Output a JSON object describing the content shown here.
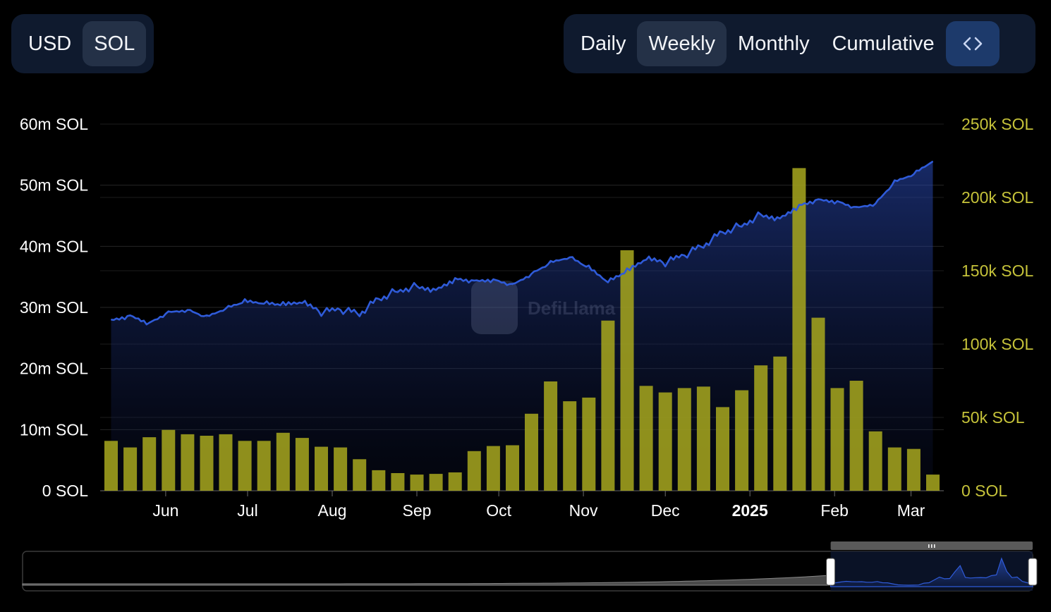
{
  "currency_toggle": {
    "options": [
      "USD",
      "SOL"
    ],
    "selected": "SOL"
  },
  "period_toggle": {
    "options": [
      "Daily",
      "Weekly",
      "Monthly",
      "Cumulative"
    ],
    "selected": "Weekly"
  },
  "embed_button": {
    "icon": "code-brackets-icon",
    "label": "<>"
  },
  "watermark": "DefiLlama",
  "colors": {
    "line": "#2f5bd9",
    "bar": "#a3a31e",
    "left_axis": "#ffffff",
    "right_axis": "#c6c33a",
    "background": "#000000"
  },
  "chart_data": {
    "type": "bar+line",
    "x_tick_labels": [
      "Jun",
      "Jul",
      "Aug",
      "Sep",
      "Oct",
      "Nov",
      "Dec",
      "2025",
      "Feb",
      "Mar"
    ],
    "left_axis": {
      "ticks": [
        "0 SOL",
        "10m SOL",
        "20m SOL",
        "30m SOL",
        "40m SOL",
        "50m SOL",
        "60m SOL"
      ],
      "ylim": [
        0,
        60000000
      ]
    },
    "right_axis": {
      "ticks": [
        "0 SOL",
        "50k SOL",
        "100k SOL",
        "150k SOL",
        "200k SOL",
        "250k SOL"
      ],
      "ylim": [
        0,
        250000
      ]
    },
    "bar_series": {
      "axis": "right",
      "x": [
        "2024-05-12",
        "2024-05-19",
        "2024-05-26",
        "2024-06-02",
        "2024-06-09",
        "2024-06-16",
        "2024-06-23",
        "2024-06-30",
        "2024-07-07",
        "2024-07-14",
        "2024-07-21",
        "2024-07-28",
        "2024-08-04",
        "2024-08-11",
        "2024-08-18",
        "2024-08-25",
        "2024-09-01",
        "2024-09-08",
        "2024-09-15",
        "2024-09-22",
        "2024-09-29",
        "2024-10-06",
        "2024-10-13",
        "2024-10-20",
        "2024-10-27",
        "2024-11-03",
        "2024-11-10",
        "2024-11-17",
        "2024-11-24",
        "2024-12-01",
        "2024-12-08",
        "2024-12-15",
        "2024-12-22",
        "2024-12-29",
        "2025-01-05",
        "2025-01-12",
        "2025-01-19",
        "2025-01-26",
        "2025-02-02",
        "2025-02-09",
        "2025-02-16",
        "2025-02-23",
        "2025-03-02",
        "2025-03-09"
      ],
      "values": [
        34000,
        29500,
        36500,
        41500,
        38500,
        37500,
        38500,
        34000,
        34000,
        39500,
        36000,
        30000,
        29500,
        21500,
        14000,
        12000,
        11000,
        11500,
        12500,
        27000,
        30500,
        31000,
        52500,
        74500,
        61000,
        63500,
        116000,
        164000,
        71500,
        67000,
        70000,
        71000,
        57000,
        68500,
        85500,
        91500,
        220000,
        118000,
        70000,
        75000,
        40500,
        29500,
        28500,
        11000
      ]
    },
    "line_series": {
      "axis": "left",
      "points": [
        [
          "2024-05-12",
          28000000
        ],
        [
          "2024-05-19",
          28700000
        ],
        [
          "2024-05-26",
          27500000
        ],
        [
          "2024-06-02",
          29200000
        ],
        [
          "2024-06-09",
          29600000
        ],
        [
          "2024-06-16",
          28400000
        ],
        [
          "2024-06-23",
          29800000
        ],
        [
          "2024-06-30",
          30900000
        ],
        [
          "2024-07-07",
          30600000
        ],
        [
          "2024-07-14",
          30300000
        ],
        [
          "2024-07-21",
          30700000
        ],
        [
          "2024-07-28",
          29200000
        ],
        [
          "2024-08-04",
          29600000
        ],
        [
          "2024-08-11",
          29000000
        ],
        [
          "2024-08-18",
          31400000
        ],
        [
          "2024-08-25",
          32800000
        ],
        [
          "2024-09-01",
          33500000
        ],
        [
          "2024-09-08",
          33000000
        ],
        [
          "2024-09-15",
          34800000
        ],
        [
          "2024-09-22",
          34400000
        ],
        [
          "2024-09-29",
          34600000
        ],
        [
          "2024-10-06",
          33700000
        ],
        [
          "2024-10-13",
          35500000
        ],
        [
          "2024-10-20",
          37300000
        ],
        [
          "2024-10-27",
          38200000
        ],
        [
          "2024-11-03",
          36400000
        ],
        [
          "2024-11-10",
          34100000
        ],
        [
          "2024-11-17",
          35800000
        ],
        [
          "2024-11-24",
          37800000
        ],
        [
          "2024-12-01",
          37300000
        ],
        [
          "2024-12-08",
          38500000
        ],
        [
          "2024-12-15",
          40200000
        ],
        [
          "2024-12-22",
          42300000
        ],
        [
          "2024-12-29",
          43500000
        ],
        [
          "2025-01-05",
          45200000
        ],
        [
          "2025-01-12",
          44700000
        ],
        [
          "2025-01-19",
          46800000
        ],
        [
          "2025-01-26",
          47700000
        ],
        [
          "2025-02-02",
          47400000
        ],
        [
          "2025-02-09",
          46300000
        ],
        [
          "2025-02-16",
          47000000
        ],
        [
          "2025-02-23",
          50500000
        ],
        [
          "2025-03-02",
          51800000
        ],
        [
          "2025-03-09",
          53900000
        ]
      ]
    },
    "grid": true,
    "legend": "none"
  },
  "range_selector": {
    "selected_start": 0.8,
    "selected_end": 1.0
  }
}
